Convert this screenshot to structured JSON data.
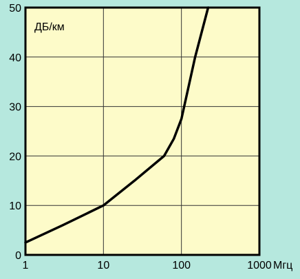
{
  "colors": {
    "background": "#b6e8de",
    "plot_area": "#fdfbc9",
    "grid": "#333333",
    "line": "#000000"
  },
  "chart_data": {
    "type": "line",
    "title": "",
    "ylabel": "ДБ/км",
    "xlabel": "Мгц",
    "x_scale": "log",
    "xlim": [
      1,
      1000
    ],
    "ylim": [
      0,
      50
    ],
    "x_ticks": [
      1,
      10,
      100,
      1000
    ],
    "x_tick_labels": [
      "1",
      "10",
      "100",
      "1000"
    ],
    "y_ticks": [
      0,
      10,
      20,
      30,
      40,
      50
    ],
    "y_tick_labels": [
      "0",
      "10",
      "20",
      "30",
      "40",
      "50"
    ],
    "grid": true,
    "series": [
      {
        "x": [
          1,
          3,
          10,
          25,
          60,
          80,
          100,
          150,
          220
        ],
        "y": [
          2.5,
          6,
          10,
          15,
          20,
          23.5,
          27.5,
          40,
          50
        ]
      }
    ]
  }
}
